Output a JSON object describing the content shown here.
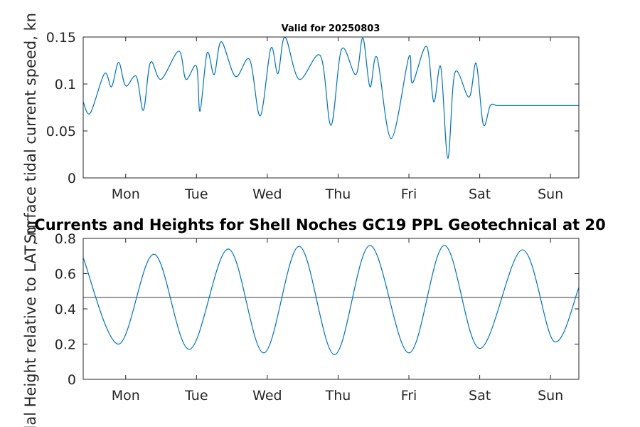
{
  "figure": {
    "top_title": "Valid for 20250803",
    "mid_title": "Currents and Heights for Shell Noches   GC19 PPL  Geotechnical at 20"
  },
  "chart_data": [
    {
      "type": "line",
      "ylabel": "Surface tidal current speed, kn",
      "ylim": [
        0,
        0.15
      ],
      "yticks": [
        0,
        0.05,
        0.1,
        0.15
      ],
      "ytick_labels": [
        "0",
        "0.05",
        "0.1",
        "0.15"
      ],
      "xlim": [
        0,
        7
      ],
      "xticks": [
        0.6,
        1.6,
        2.6,
        3.6,
        4.6,
        5.6,
        6.6
      ],
      "xtick_labels": [
        "Mon",
        "Tue",
        "Wed",
        "Thu",
        "Fri",
        "Sat",
        "Sun"
      ],
      "series": [
        {
          "color": "#0072BD",
          "x": [
            0,
            0.1,
            0.3,
            0.4,
            0.5,
            0.6,
            0.75,
            0.85,
            0.95,
            1.1,
            1.35,
            1.45,
            1.6,
            1.65,
            1.75,
            1.85,
            1.95,
            2.15,
            2.35,
            2.5,
            2.65,
            2.75,
            2.85,
            3.05,
            3.35,
            3.5,
            3.65,
            3.85,
            3.95,
            4.05,
            4.15,
            4.35,
            4.6,
            4.65,
            4.85,
            4.95,
            5.05,
            5.15,
            5.25,
            5.45,
            5.55,
            5.65,
            5.75,
            5.85,
            6.0,
            6.1,
            6.25,
            6.35,
            6.45,
            6.55,
            6.65,
            6.8,
            6.95,
            7.0
          ],
          "values": [
            0.081,
            0.069,
            0.111,
            0.097,
            0.123,
            0.098,
            0.108,
            0.072,
            0.123,
            0.105,
            0.135,
            0.105,
            0.119,
            0.071,
            0.133,
            0.11,
            0.145,
            0.108,
            0.126,
            0.066,
            0.138,
            0.111,
            0.15,
            0.105,
            0.13,
            0.056,
            0.137,
            0.11,
            0.149,
            0.097,
            0.128,
            0.042,
            0.129,
            0.101,
            0.14,
            0.081,
            0.118,
            0.021,
            0.112,
            0.086,
            0.122,
            0.057,
            0.077,
            0.077,
            0.077,
            0.077,
            0.077,
            0.077,
            0.077,
            0.077,
            0.077,
            0.077,
            0.077,
            0.077
          ]
        }
      ]
    },
    {
      "type": "line",
      "ylabel": "Tidal Height relative to LAT, m",
      "ylim": [
        0,
        0.8
      ],
      "yticks": [
        0,
        0.2,
        0.4,
        0.6,
        0.8
      ],
      "ytick_labels": [
        "0",
        "0.2",
        "0.4",
        "0.6",
        "0.8"
      ],
      "xlim": [
        0,
        7
      ],
      "xticks": [
        0.6,
        1.6,
        2.6,
        3.6,
        4.6,
        5.6,
        6.6
      ],
      "xtick_labels": [
        "Mon",
        "Tue",
        "Wed",
        "Thu",
        "Fri",
        "Sat",
        "Sun"
      ],
      "series": [
        {
          "color": "#0072BD",
          "x": [
            0,
            0.5,
            1.0,
            1.5,
            2.05,
            2.55,
            3.05,
            3.55,
            4.05,
            4.6,
            5.1,
            5.6,
            6.2,
            6.65,
            7.0
          ],
          "values": [
            0.69,
            0.2,
            0.71,
            0.17,
            0.74,
            0.15,
            0.755,
            0.14,
            0.76,
            0.15,
            0.76,
            0.175,
            0.735,
            0.215,
            0.52
          ]
        }
      ],
      "reference_line": {
        "y": 0.465,
        "color": "#4d4d4d"
      }
    }
  ]
}
